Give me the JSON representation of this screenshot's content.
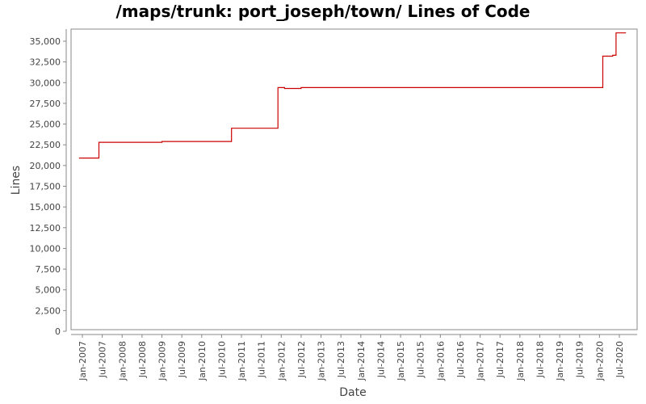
{
  "chart_data": {
    "type": "line",
    "title": "/maps/trunk: port_joseph/town/ Lines of Code",
    "xlabel": "Date",
    "ylabel": "Lines",
    "ylim": [
      0,
      36000
    ],
    "grid": false,
    "legend": null,
    "line_color": "#cc0000",
    "y_ticks": [
      0,
      2500,
      5000,
      7500,
      10000,
      12500,
      15000,
      17500,
      20000,
      22500,
      25000,
      27500,
      30000,
      32500,
      35000
    ],
    "y_tick_labels": [
      "0",
      "2,500",
      "5,000",
      "7,500",
      "10,000",
      "12,500",
      "15,000",
      "17,500",
      "20,000",
      "22,500",
      "25,000",
      "27,500",
      "30,000",
      "32,500",
      "35,000"
    ],
    "x_tick_labels": [
      "Jan-2007",
      "Jul-2007",
      "Jan-2008",
      "Jul-2008",
      "Jan-2009",
      "Jul-2009",
      "Jan-2010",
      "Jul-2010",
      "Jan-2011",
      "Jul-2011",
      "Jan-2012",
      "Jul-2012",
      "Jan-2013",
      "Jul-2013",
      "Jan-2014",
      "Jul-2014",
      "Jan-2015",
      "Jul-2015",
      "Jan-2016",
      "Jul-2016",
      "Jan-2017",
      "Jul-2017",
      "Jan-2018",
      "Jul-2018",
      "Jan-2019",
      "Jul-2019",
      "Jan-2020",
      "Jul-2020"
    ],
    "step": true,
    "series": [
      {
        "name": "Lines of Code",
        "points": [
          {
            "x": "2006-12",
            "y": 20900
          },
          {
            "x": "2007-06",
            "y": 22800
          },
          {
            "x": "2009-01",
            "y": 22900
          },
          {
            "x": "2010-10",
            "y": 24500
          },
          {
            "x": "2011-12",
            "y": 26000
          },
          {
            "x": "2011-12",
            "y": 29400
          },
          {
            "x": "2012-02",
            "y": 29300
          },
          {
            "x": "2012-07",
            "y": 29400
          },
          {
            "x": "2020-02",
            "y": 33200
          },
          {
            "x": "2020-05",
            "y": 33300
          },
          {
            "x": "2020-06",
            "y": 36000
          },
          {
            "x": "2020-09",
            "y": 36000
          }
        ]
      }
    ]
  }
}
